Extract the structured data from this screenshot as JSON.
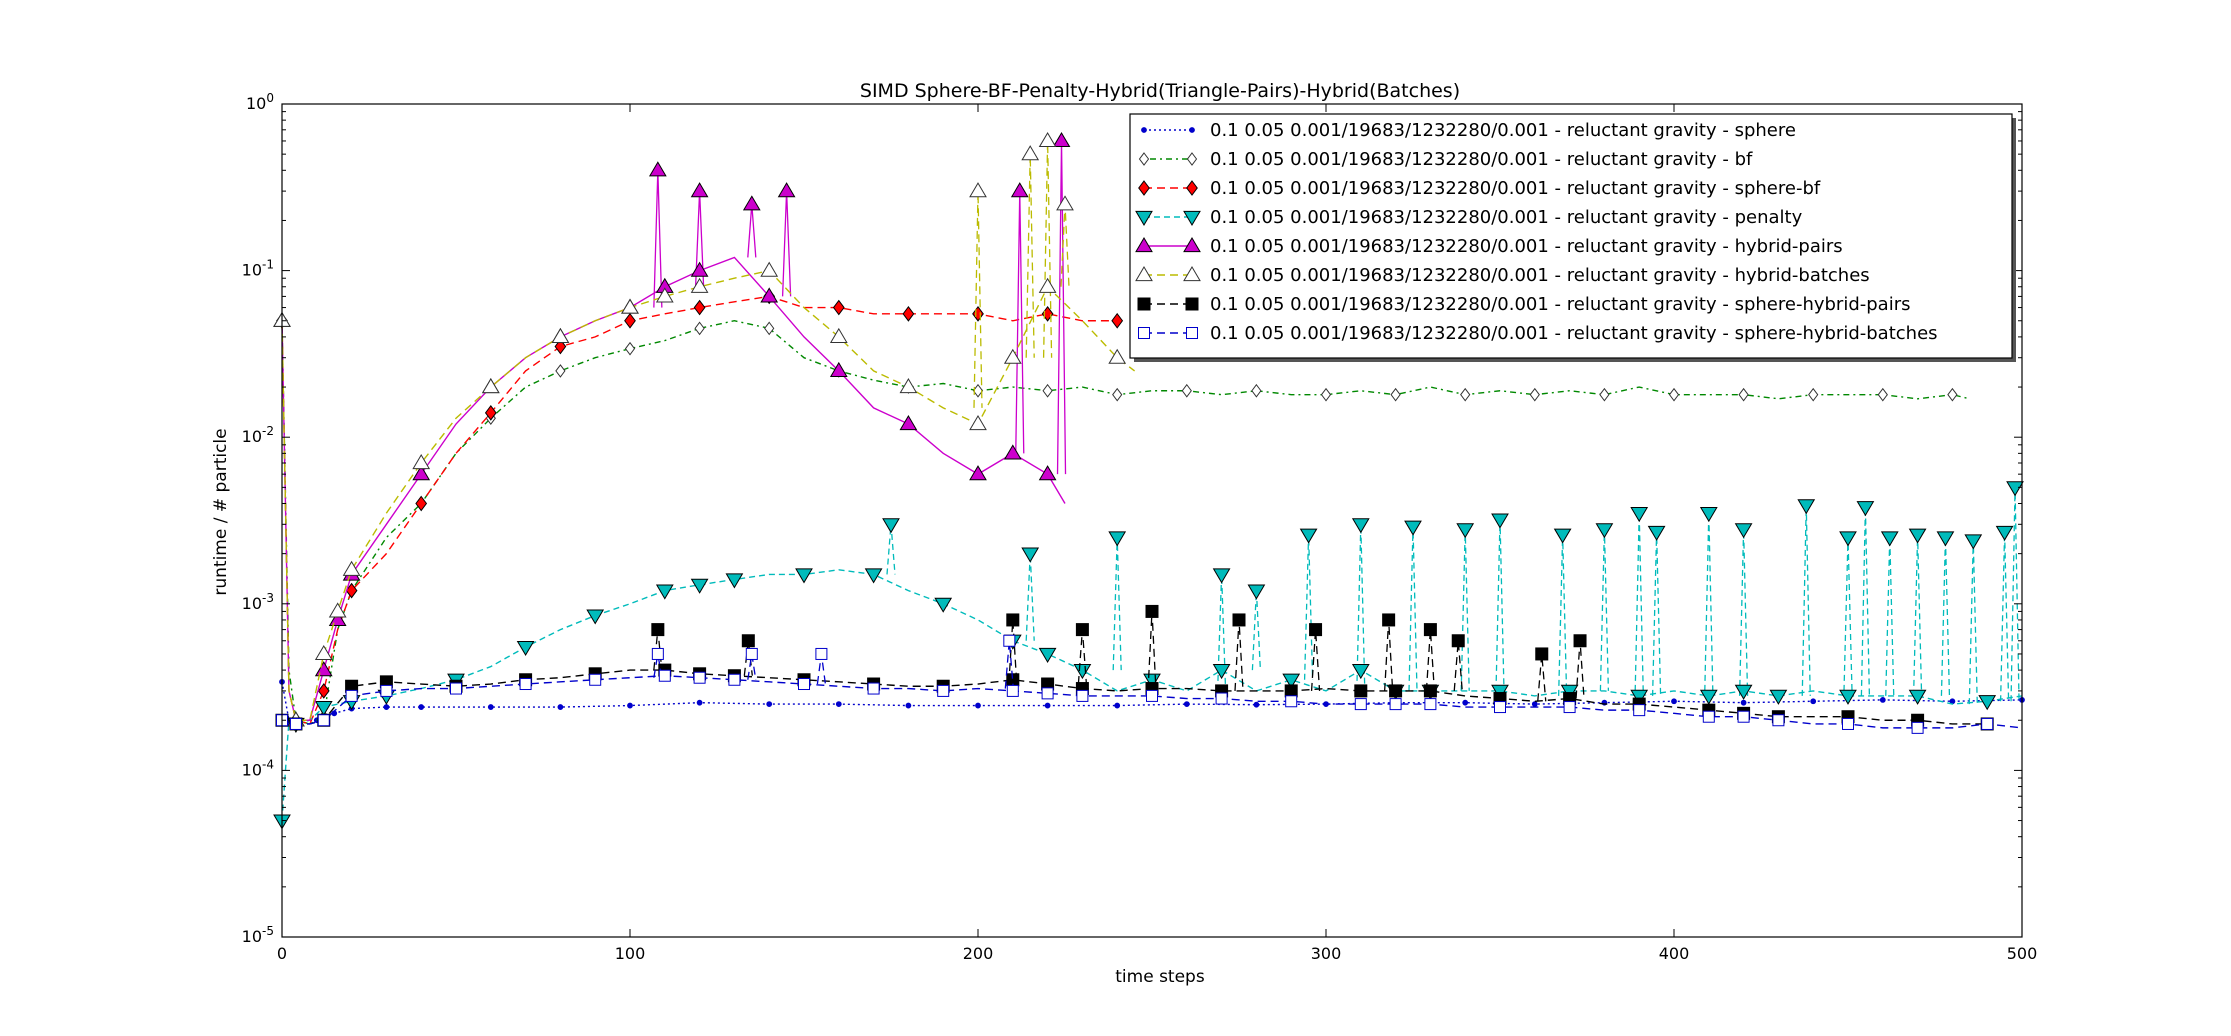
{
  "chart_data": {
    "type": "line",
    "title": "SIMD Sphere-BF-Penalty-Hybrid(Triangle-Pairs)-Hybrid(Batches)",
    "xlabel": "time steps",
    "ylabel": "runtime / # particle",
    "xlim": [
      0,
      500
    ],
    "ylim": [
      1e-05,
      1
    ],
    "yscale": "log",
    "xticks": [
      "0",
      "100",
      "200",
      "300",
      "400",
      "500"
    ],
    "yticks": [
      {
        "value": 1e-05,
        "base": "10",
        "exp": "-5"
      },
      {
        "value": 0.0001,
        "base": "10",
        "exp": "-4"
      },
      {
        "value": 0.001,
        "base": "10",
        "exp": "-3"
      },
      {
        "value": 0.01,
        "base": "10",
        "exp": "-2"
      },
      {
        "value": 0.1,
        "base": "10",
        "exp": "-1"
      },
      {
        "value": 1,
        "base": "10",
        "exp": "0"
      }
    ],
    "grid": false,
    "legend_position": "top-right",
    "series": [
      {
        "name": "0.1 0.05 0.001/19683/1232280/0.001 - reluctant gravity - sphere",
        "color": "#0000cc",
        "dash": "2,3",
        "marker": "circle",
        "filled": true,
        "ms": 4,
        "every": 1,
        "x": [
          0,
          2,
          5,
          10,
          15,
          20,
          30,
          40,
          60,
          80,
          100,
          120,
          140,
          160,
          180,
          200,
          220,
          240,
          260,
          280,
          300,
          320,
          340,
          360,
          380,
          400,
          420,
          440,
          460,
          480,
          500
        ],
        "y": [
          0.00034,
          0.0002,
          0.0002,
          0.0002,
          0.00022,
          0.000235,
          0.00024,
          0.00024,
          0.00024,
          0.00024,
          0.000245,
          0.000255,
          0.00025,
          0.00025,
          0.000245,
          0.000245,
          0.000245,
          0.000245,
          0.00025,
          0.000248,
          0.00025,
          0.000255,
          0.000255,
          0.00025,
          0.000255,
          0.00026,
          0.000255,
          0.00026,
          0.000265,
          0.00026,
          0.000265
        ]
      },
      {
        "name": "0.1 0.05 0.001/19683/1232280/0.001 - reluctant gravity - bf",
        "color": "#008800",
        "dash": "2,4,6,4",
        "marker": "diamond",
        "filled": false,
        "ms": 6,
        "every": 4,
        "x": [
          0,
          2,
          4,
          8,
          12,
          16,
          20,
          30,
          40,
          50,
          60,
          70,
          80,
          90,
          100,
          110,
          120,
          130,
          140,
          150,
          160,
          170,
          180,
          190,
          200,
          210,
          220,
          230,
          240,
          250,
          260,
          270,
          280,
          290,
          300,
          310,
          320,
          330,
          340,
          350,
          360,
          370,
          380,
          390,
          400,
          410,
          420,
          430,
          440,
          450,
          460,
          470,
          480,
          485
        ],
        "y": [
          0.05,
          0.0004,
          0.0002,
          0.00019,
          0.00021,
          0.0007,
          0.0012,
          0.0025,
          0.004,
          0.008,
          0.013,
          0.02,
          0.025,
          0.03,
          0.034,
          0.038,
          0.045,
          0.05,
          0.045,
          0.03,
          0.025,
          0.022,
          0.02,
          0.021,
          0.019,
          0.02,
          0.019,
          0.02,
          0.018,
          0.019,
          0.019,
          0.018,
          0.019,
          0.018,
          0.018,
          0.019,
          0.018,
          0.02,
          0.018,
          0.019,
          0.018,
          0.019,
          0.018,
          0.02,
          0.018,
          0.018,
          0.018,
          0.017,
          0.018,
          0.018,
          0.018,
          0.017,
          0.018,
          0.017
        ]
      },
      {
        "name": "0.1 0.05 0.001/19683/1232280/0.001 - reluctant gravity - sphere-bf",
        "color": "#ff0000",
        "dash": "8,5",
        "marker": "diamond",
        "filled": true,
        "ms": 7,
        "every": 4,
        "x": [
          0,
          2,
          4,
          8,
          12,
          16,
          20,
          30,
          40,
          50,
          60,
          70,
          80,
          90,
          100,
          110,
          120,
          130,
          140,
          150,
          160,
          170,
          180,
          190,
          200,
          210,
          220,
          230,
          240
        ],
        "y": [
          0.05,
          0.0003,
          0.0002,
          0.00019,
          0.0003,
          0.0007,
          0.0012,
          0.002,
          0.004,
          0.008,
          0.014,
          0.025,
          0.035,
          0.04,
          0.05,
          0.055,
          0.06,
          0.065,
          0.07,
          0.06,
          0.06,
          0.055,
          0.055,
          0.055,
          0.055,
          0.05,
          0.055,
          0.05,
          0.05
        ]
      },
      {
        "name": "0.1 0.05 0.001/19683/1232280/0.001 - reluctant gravity - penalty",
        "color": "#00bbbb",
        "dash": "6,4",
        "marker": "tri-down",
        "filled": true,
        "ms": 8,
        "every": 5,
        "x": [
          0,
          2,
          4,
          8,
          12,
          20,
          30,
          40,
          50,
          60,
          70,
          80,
          90,
          100,
          110,
          120,
          130,
          140,
          150,
          160,
          170,
          180,
          190,
          200,
          210,
          220,
          230,
          240,
          250,
          260,
          270,
          280,
          290,
          300,
          310,
          320,
          330,
          340,
          350,
          360,
          370,
          380,
          390,
          400,
          410,
          420,
          430,
          440,
          450,
          460,
          470,
          480,
          490,
          500
        ],
        "y": [
          5e-05,
          0.0002,
          0.00019,
          0.0002,
          0.00024,
          0.00026,
          0.00028,
          0.00031,
          0.00035,
          0.00042,
          0.00055,
          0.0007,
          0.00085,
          0.001,
          0.0012,
          0.0013,
          0.0014,
          0.0015,
          0.0015,
          0.0016,
          0.0015,
          0.0012,
          0.001,
          0.0008,
          0.0006,
          0.0005,
          0.0004,
          0.0003,
          0.00035,
          0.0003,
          0.0004,
          0.0003,
          0.00035,
          0.0003,
          0.0004,
          0.0003,
          0.0003,
          0.0003,
          0.0003,
          0.00028,
          0.0003,
          0.0003,
          0.00028,
          0.0003,
          0.00028,
          0.0003,
          0.00028,
          0.0003,
          0.00028,
          0.00028,
          0.00028,
          0.00025,
          0.00026,
          0.00028
        ],
        "spikes": [
          [
            175,
            0.003
          ],
          [
            215,
            0.002
          ],
          [
            240,
            0.0025
          ],
          [
            270,
            0.0015
          ],
          [
            280,
            0.0012
          ],
          [
            295,
            0.0026
          ],
          [
            310,
            0.003
          ],
          [
            325,
            0.0029
          ],
          [
            340,
            0.0028
          ],
          [
            350,
            0.0032
          ],
          [
            368,
            0.0026
          ],
          [
            380,
            0.0028
          ],
          [
            390,
            0.0035
          ],
          [
            395,
            0.0027
          ],
          [
            410,
            0.0035
          ],
          [
            420,
            0.0028
          ],
          [
            438,
            0.0039
          ],
          [
            450,
            0.0025
          ],
          [
            455,
            0.0038
          ],
          [
            462,
            0.0025
          ],
          [
            470,
            0.0026
          ],
          [
            478,
            0.0025
          ],
          [
            486,
            0.0024
          ],
          [
            495,
            0.0027
          ],
          [
            498,
            0.005
          ]
        ]
      },
      {
        "name": "0.1 0.05 0.001/19683/1232280/0.001 - reluctant gravity - hybrid-pairs",
        "color": "#cc00cc",
        "dash": "",
        "marker": "tri-up",
        "filled": true,
        "ms": 8,
        "every": 5,
        "x": [
          0,
          2,
          4,
          8,
          12,
          16,
          20,
          30,
          40,
          50,
          60,
          70,
          80,
          90,
          100,
          110,
          120,
          130,
          140,
          150,
          160,
          170,
          180,
          190,
          200,
          210,
          220,
          225
        ],
        "y": [
          0.05,
          0.0003,
          0.0002,
          0.0002,
          0.0004,
          0.0008,
          0.0015,
          0.003,
          0.006,
          0.012,
          0.02,
          0.03,
          0.04,
          0.05,
          0.06,
          0.08,
          0.1,
          0.12,
          0.07,
          0.04,
          0.025,
          0.015,
          0.012,
          0.008,
          0.006,
          0.008,
          0.006,
          0.004
        ],
        "spikes": [
          [
            108,
            0.4
          ],
          [
            120,
            0.3
          ],
          [
            135,
            0.25
          ],
          [
            145,
            0.3
          ],
          [
            212,
            0.3
          ],
          [
            224,
            0.6
          ]
        ]
      },
      {
        "name": "0.1 0.05 0.001/19683/1232280/0.001 - reluctant gravity - hybrid-batches",
        "color": "#bbbb00",
        "dash": "8,5",
        "marker": "tri-up",
        "filled": false,
        "ms": 8,
        "every": 5,
        "x": [
          0,
          2,
          4,
          8,
          12,
          16,
          20,
          30,
          40,
          50,
          60,
          70,
          80,
          90,
          100,
          110,
          120,
          130,
          140,
          150,
          160,
          170,
          180,
          190,
          200,
          210,
          220,
          230,
          240,
          245
        ],
        "y": [
          0.05,
          0.0003,
          0.0002,
          0.0002,
          0.0005,
          0.0009,
          0.0016,
          0.0035,
          0.007,
          0.013,
          0.02,
          0.03,
          0.04,
          0.05,
          0.06,
          0.07,
          0.08,
          0.09,
          0.1,
          0.06,
          0.04,
          0.025,
          0.02,
          0.015,
          0.012,
          0.03,
          0.08,
          0.05,
          0.03,
          0.025
        ],
        "spikes": [
          [
            200,
            0.3
          ],
          [
            215,
            0.5
          ],
          [
            220,
            0.6
          ],
          [
            225,
            0.25
          ]
        ]
      },
      {
        "name": "0.1 0.05 0.001/19683/1232280/0.001 - reluctant gravity - sphere-hybrid-pairs",
        "color": "#000000",
        "dash": "8,5",
        "marker": "square",
        "filled": true,
        "ms": 12,
        "every": 5,
        "x": [
          0,
          2,
          4,
          8,
          12,
          20,
          30,
          40,
          50,
          60,
          70,
          80,
          90,
          100,
          110,
          120,
          130,
          140,
          150,
          160,
          170,
          180,
          190,
          200,
          210,
          220,
          230,
          240,
          250,
          260,
          270,
          280,
          290,
          300,
          310,
          320,
          330,
          340,
          350,
          360,
          370,
          380,
          390,
          400,
          410,
          420,
          430,
          440,
          450,
          460,
          470,
          480,
          490
        ],
        "y": [
          0.0002,
          0.00019,
          0.00019,
          0.00019,
          0.0002,
          0.00032,
          0.00034,
          0.00033,
          0.00032,
          0.00033,
          0.00035,
          0.00036,
          0.00038,
          0.0004,
          0.0004,
          0.00038,
          0.00037,
          0.00036,
          0.00035,
          0.00034,
          0.00033,
          0.00032,
          0.00032,
          0.00033,
          0.00035,
          0.00033,
          0.00031,
          0.0003,
          0.00031,
          0.00031,
          0.0003,
          0.0003,
          0.0003,
          0.00031,
          0.0003,
          0.0003,
          0.0003,
          0.00028,
          0.00027,
          0.00026,
          0.00027,
          0.00025,
          0.00025,
          0.00024,
          0.00023,
          0.00022,
          0.00021,
          0.00021,
          0.00021,
          0.0002,
          0.0002,
          0.00019,
          0.00019
        ],
        "spikes": [
          [
            108,
            0.0007
          ],
          [
            134,
            0.0006
          ],
          [
            210,
            0.0008
          ],
          [
            230,
            0.0007
          ],
          [
            250,
            0.0009
          ],
          [
            275,
            0.0008
          ],
          [
            297,
            0.0007
          ],
          [
            318,
            0.0008
          ],
          [
            330,
            0.0007
          ],
          [
            338,
            0.0006
          ],
          [
            362,
            0.0005
          ],
          [
            373,
            0.0006
          ]
        ]
      },
      {
        "name": "0.1 0.05 0.001/19683/1232280/0.001 - reluctant gravity - sphere-hybrid-batches",
        "color": "#0000cc",
        "dash": "8,5",
        "marker": "square",
        "filled": false,
        "ms": 11,
        "every": 5,
        "x": [
          0,
          2,
          4,
          8,
          12,
          20,
          30,
          40,
          50,
          60,
          70,
          80,
          90,
          100,
          110,
          120,
          130,
          140,
          150,
          160,
          170,
          180,
          190,
          200,
          210,
          220,
          230,
          240,
          250,
          260,
          270,
          280,
          290,
          300,
          310,
          320,
          330,
          340,
          350,
          360,
          370,
          380,
          390,
          400,
          410,
          420,
          430,
          440,
          450,
          460,
          470,
          480,
          490,
          500
        ],
        "y": [
          0.0002,
          0.00019,
          0.00019,
          0.00019,
          0.0002,
          0.00028,
          0.0003,
          0.00031,
          0.00031,
          0.00032,
          0.00033,
          0.00034,
          0.00035,
          0.00036,
          0.00037,
          0.00036,
          0.00035,
          0.00034,
          0.00033,
          0.00032,
          0.00031,
          0.00031,
          0.0003,
          0.00031,
          0.0003,
          0.00029,
          0.00028,
          0.00028,
          0.00028,
          0.00027,
          0.00027,
          0.00026,
          0.00026,
          0.00025,
          0.00025,
          0.00025,
          0.00025,
          0.00024,
          0.00024,
          0.00024,
          0.00024,
          0.00023,
          0.00023,
          0.00022,
          0.00021,
          0.00021,
          0.0002,
          0.00019,
          0.00019,
          0.00018,
          0.00018,
          0.00018,
          0.00019,
          0.00018
        ],
        "spikes": [
          [
            108,
            0.0005
          ],
          [
            135,
            0.0005
          ],
          [
            155,
            0.0005
          ],
          [
            209,
            0.0006
          ]
        ]
      }
    ]
  }
}
